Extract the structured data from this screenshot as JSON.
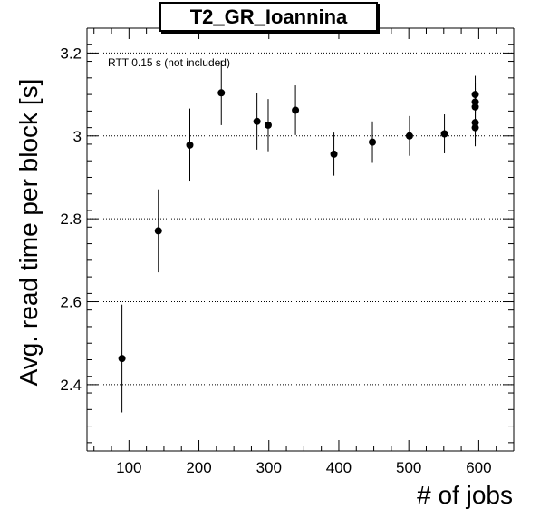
{
  "chart_data": {
    "type": "scatter",
    "title": "T2_GR_Ioannina",
    "xlabel": "# of jobs",
    "ylabel": "Avg. read time per block [s]",
    "annotation": "RTT 0.15 s (not included)",
    "xlim": [
      40,
      650
    ],
    "ylim": [
      2.24,
      3.26
    ],
    "xticks": [
      100,
      200,
      300,
      400,
      500,
      600
    ],
    "xtick_labels": [
      "100",
      "200",
      "300",
      "400",
      "500",
      "600"
    ],
    "yticks": [
      2.4,
      2.6,
      2.8,
      3.0,
      3.2
    ],
    "ytick_labels": [
      "2.4",
      "2.6",
      "2.8",
      "3",
      "3.2"
    ],
    "grid_y": true,
    "grid_x": false,
    "series": [
      {
        "points": [
          {
            "x": 90,
            "y": 2.463,
            "err": 0.13
          },
          {
            "x": 142,
            "y": 2.771,
            "err": 0.1
          },
          {
            "x": 187,
            "y": 2.978,
            "err": 0.088
          },
          {
            "x": 232,
            "y": 3.104,
            "err": 0.078
          },
          {
            "x": 283,
            "y": 3.035,
            "err": 0.068
          },
          {
            "x": 299,
            "y": 3.026,
            "err": 0.063
          },
          {
            "x": 338,
            "y": 3.062,
            "err": 0.06
          },
          {
            "x": 393,
            "y": 2.956,
            "err": 0.052
          },
          {
            "x": 448,
            "y": 2.985,
            "err": 0.05
          },
          {
            "x": 501,
            "y": 3.0,
            "err": 0.048
          },
          {
            "x": 551,
            "y": 3.005,
            "err": 0.047
          },
          {
            "x": 595,
            "y": 3.1,
            "err": 0.045
          },
          {
            "x": 595,
            "y": 3.082,
            "err": 0.045
          },
          {
            "x": 595,
            "y": 3.07,
            "err": 0.045
          },
          {
            "x": 595,
            "y": 3.032,
            "err": 0.045
          },
          {
            "x": 595,
            "y": 3.02,
            "err": 0.045
          }
        ]
      }
    ]
  }
}
